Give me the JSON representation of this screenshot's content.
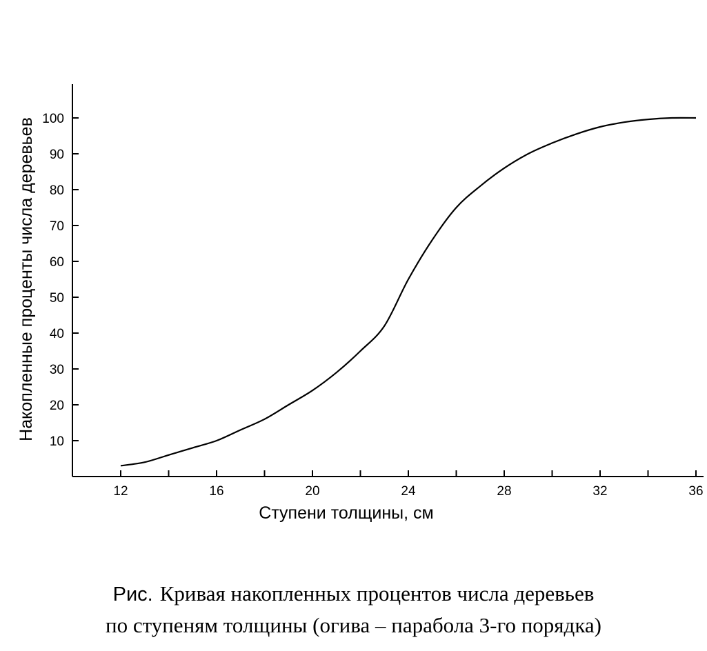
{
  "chart_data": {
    "type": "line",
    "xlabel": "Ступени толщины, см",
    "ylabel": "Накопленные проценты числа деревьев",
    "xlim": [
      10,
      36
    ],
    "ylim": [
      0,
      110
    ],
    "x_ticks": [
      12,
      16,
      20,
      24,
      28,
      32,
      36
    ],
    "x_minor_ticks": [
      14,
      18,
      22,
      26,
      30,
      34
    ],
    "y_ticks": [
      10,
      20,
      30,
      40,
      50,
      60,
      70,
      80,
      90,
      100
    ],
    "grid": false,
    "series": [
      {
        "x": [
          12,
          13,
          14,
          15,
          16,
          17,
          18,
          19,
          20,
          21,
          22,
          23,
          24,
          25,
          26,
          27,
          28,
          29,
          30,
          31,
          32,
          33,
          34,
          35,
          36
        ],
        "y": [
          3,
          4,
          6,
          8,
          10,
          13,
          16,
          20,
          24,
          29,
          35,
          42,
          55,
          66,
          75,
          81,
          86,
          90,
          93,
          95.5,
          97.5,
          98.8,
          99.6,
          100,
          100
        ]
      }
    ]
  },
  "caption": {
    "prefix": "Рис.",
    "line1": "Кривая накопленных процентов числа деревьев",
    "line2": "по ступеням толщины (огива – парабола 3-го порядка)"
  }
}
